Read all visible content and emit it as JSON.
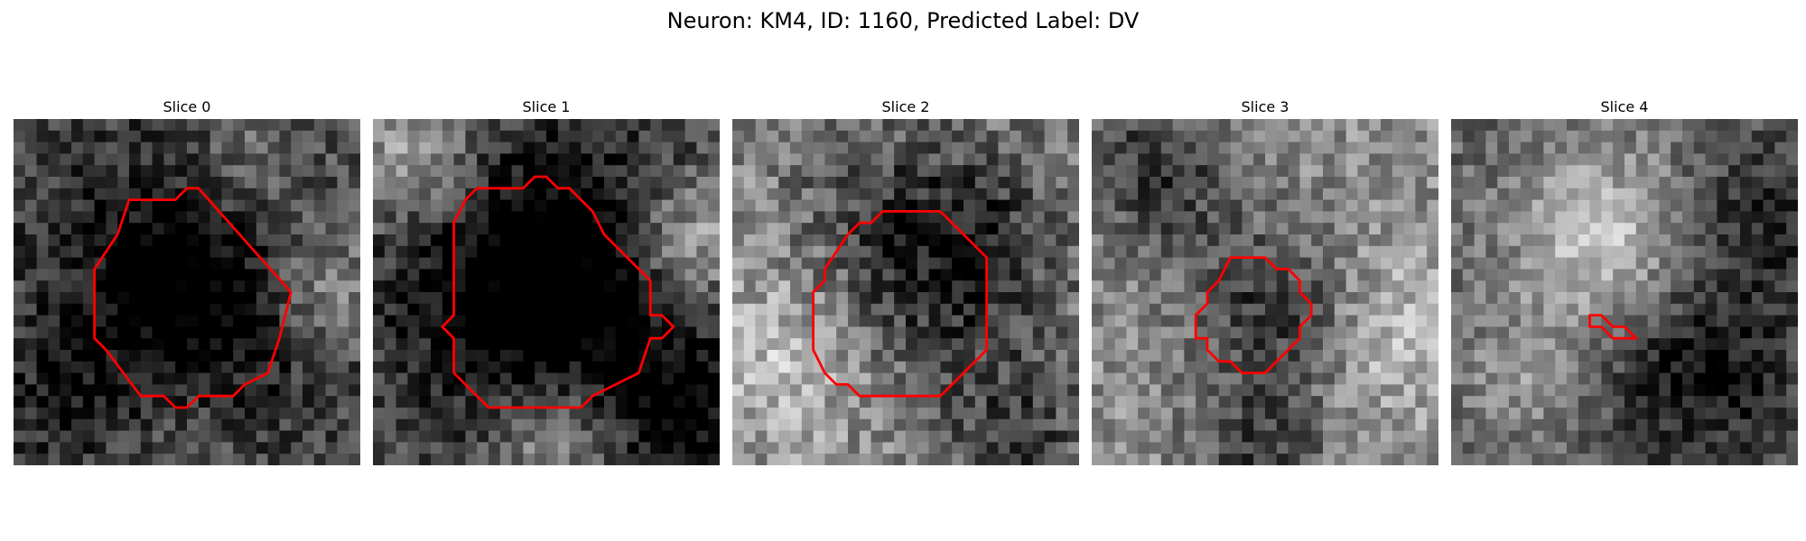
{
  "figure": {
    "title": "Neuron: KM4, ID: 1160, Predicted Label: DV",
    "contour_color": "#ff0000"
  },
  "panels": [
    {
      "title": "Slice 0"
    },
    {
      "title": "Slice 1"
    },
    {
      "title": "Slice 2"
    },
    {
      "title": "Slice 3"
    },
    {
      "title": "Slice 4"
    }
  ]
}
